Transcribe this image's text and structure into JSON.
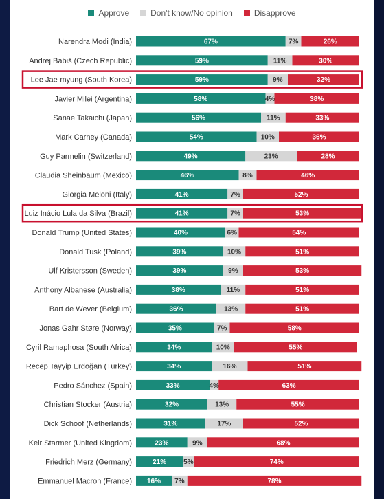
{
  "legend": {
    "approve": "Approve",
    "unsure": "Don't know/No opinion",
    "disapprove": "Disapprove"
  },
  "colors": {
    "approve": "#1a8a7a",
    "unsure": "#d6d6d6",
    "disapprove": "#d1283a",
    "highlight": "#c8102e"
  },
  "chart_data": {
    "type": "bar",
    "orientation": "horizontal",
    "stacked": true,
    "percent_suffix": "%",
    "categories": [
      "Narendra Modi (India)",
      "Andrej Babiš (Czech Republic)",
      "Lee Jae-myung (South Korea)",
      "Javier Milei (Argentina)",
      "Sanae Takaichi (Japan)",
      "Mark Carney (Canada)",
      "Guy Parmelin (Switzerland)",
      "Claudia Sheinbaum (Mexico)",
      "Giorgia Meloni (Italy)",
      "Luiz Inácio Lula da Silva (Brazil)",
      "Donald Trump (United States)",
      "Donald Tusk (Poland)",
      "Ulf Kristersson (Sweden)",
      "Anthony Albanese (Australia)",
      "Bart de Wever (Belgium)",
      "Jonas Gahr Støre (Norway)",
      "Cyril Ramaphosa (South Africa)",
      "Recep Tayyip Erdoğan (Turkey)",
      "Pedro Sánchez (Spain)",
      "Christian Stocker (Austria)",
      "Dick Schoof (Netherlands)",
      "Keir Starmer (United Kingdom)",
      "Friedrich Merz (Germany)",
      "Emmanuel Macron (France)"
    ],
    "series": [
      {
        "name": "Approve",
        "values": [
          67,
          59,
          59,
          58,
          56,
          54,
          49,
          46,
          41,
          41,
          40,
          39,
          39,
          38,
          36,
          35,
          34,
          34,
          33,
          32,
          31,
          23,
          21,
          16
        ]
      },
      {
        "name": "Don't know/No opinion",
        "values": [
          7,
          11,
          9,
          4,
          11,
          10,
          23,
          8,
          7,
          7,
          6,
          10,
          9,
          11,
          13,
          7,
          10,
          16,
          4,
          13,
          17,
          9,
          5,
          7
        ]
      },
      {
        "name": "Disapprove",
        "values": [
          26,
          30,
          32,
          38,
          33,
          36,
          28,
          46,
          52,
          53,
          54,
          51,
          53,
          51,
          51,
          58,
          55,
          51,
          63,
          55,
          52,
          68,
          74,
          78
        ]
      }
    ],
    "highlighted": [
      "Lee Jae-myung (South Korea)",
      "Luiz Inácio Lula da Silva (Brazil)"
    ],
    "xlim": [
      0,
      100
    ]
  }
}
